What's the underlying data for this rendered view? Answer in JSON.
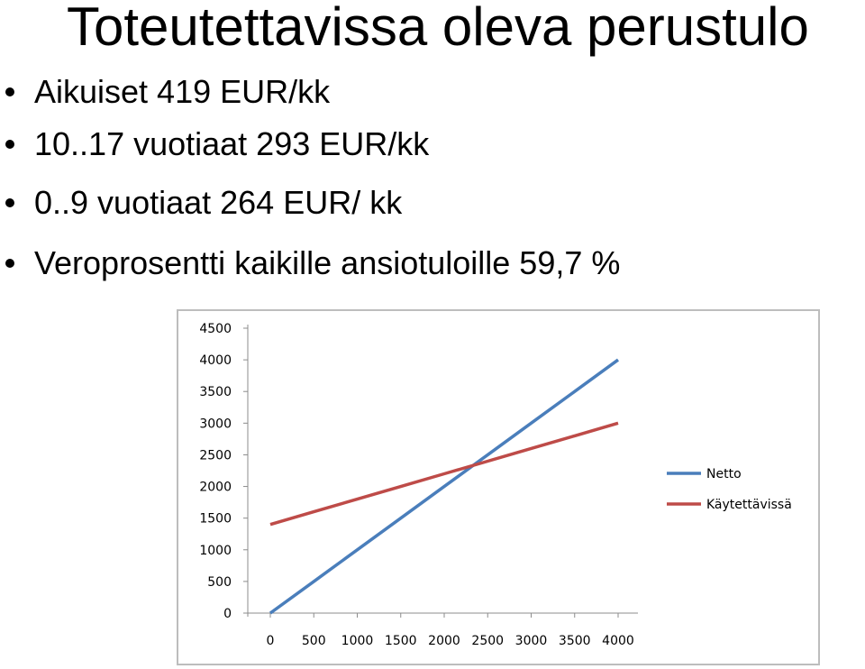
{
  "slide": {
    "title": "Toteutettavissa oleva perustulo",
    "bullets": [
      "Aikuiset 419 EUR/kk",
      "10..17 vuotiaat 293 EUR/kk",
      "0..9 vuotiaat 264 EUR/ kk",
      "Veroprosentti kaikille ansiotuloille 59,7 %"
    ]
  },
  "chart_data": {
    "type": "line",
    "title": "",
    "xlabel": "",
    "ylabel": "",
    "x": [
      0,
      500,
      1000,
      1500,
      2000,
      2500,
      3000,
      3500,
      4000
    ],
    "x_tick_labels": [
      "0",
      "500",
      "1000",
      "1500",
      "2000",
      "2500",
      "3000",
      "3500",
      "4000"
    ],
    "y_tick_labels": [
      "0",
      "500",
      "1000",
      "1500",
      "2000",
      "2500",
      "3000",
      "3500",
      "4000",
      "4500"
    ],
    "ylim": [
      0,
      4500
    ],
    "grid": false,
    "legend_position": "right",
    "series": [
      {
        "name": "Netto",
        "color": "#4a7ebb",
        "values": [
          0,
          500,
          1000,
          1500,
          2000,
          2500,
          3000,
          3500,
          4000
        ]
      },
      {
        "name": "Käytettävissä",
        "color": "#be4b48",
        "values": [
          1400,
          1600,
          1800,
          2000,
          2200,
          2400,
          2600,
          2800,
          3000
        ]
      }
    ]
  }
}
